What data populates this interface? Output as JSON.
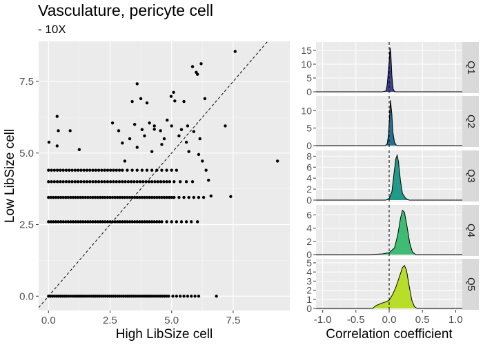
{
  "title": "Vasculature, pericyte cell",
  "subtitle": "- 10X",
  "chart_data": [
    {
      "type": "scatter",
      "xlabel": "High LibSize cell",
      "ylabel": "Low LibSize cell",
      "xlim": [
        -0.4,
        9.8
      ],
      "ylim": [
        -0.5,
        8.9
      ],
      "x_ticks": [
        "0.0",
        "2.5",
        "5.0",
        "7.5"
      ],
      "x_tick_values": [
        0,
        2.5,
        5.0,
        7.5
      ],
      "y_ticks": [
        "0.0",
        "2.5",
        "5.0",
        "7.5"
      ],
      "y_tick_values": [
        0,
        2.5,
        5.0,
        7.5
      ],
      "reference_line": "y = x (dashed)",
      "grid": true,
      "points": [
        [
          0.02,
          5.38
        ],
        [
          0.35,
          6.28
        ],
        [
          0.35,
          5.25
        ],
        [
          0.4,
          5.78
        ],
        [
          0.88,
          5.78
        ],
        [
          1.25,
          5.12
        ],
        [
          2.6,
          6.05
        ],
        [
          3.4,
          6.8
        ],
        [
          3.6,
          7.42
        ],
        [
          3.75,
          6.9
        ],
        [
          3.8,
          5.82
        ],
        [
          4.0,
          6.75
        ],
        [
          4.3,
          5.83
        ],
        [
          4.3,
          5.95
        ],
        [
          4.55,
          5.78
        ],
        [
          4.82,
          6.15
        ],
        [
          4.98,
          6.98
        ],
        [
          5.08,
          7.12
        ],
        [
          5.13,
          6.82
        ],
        [
          5.5,
          6.8
        ],
        [
          5.85,
          8.02
        ],
        [
          6.0,
          7.82
        ],
        [
          6.05,
          7.75
        ],
        [
          6.2,
          8.12
        ],
        [
          6.35,
          6.9
        ],
        [
          7.58,
          8.55
        ],
        [
          7.18,
          5.95
        ],
        [
          7.4,
          3.48
        ],
        [
          9.3,
          4.72
        ],
        [
          6.05,
          2.6
        ],
        [
          5.6,
          5.38
        ],
        [
          5.9,
          5.75
        ],
        [
          5.3,
          5.6
        ],
        [
          4.7,
          5.5
        ],
        [
          5.0,
          5.95
        ],
        [
          5.4,
          5.82
        ],
        [
          3.9,
          5.6
        ],
        [
          3.3,
          5.5
        ],
        [
          3.0,
          5.35
        ],
        [
          3.6,
          5.2
        ],
        [
          4.2,
          5.05
        ],
        [
          4.6,
          5.3
        ],
        [
          5.7,
          5.05
        ],
        [
          6.1,
          4.95
        ],
        [
          6.25,
          4.72
        ],
        [
          6.4,
          4.4
        ],
        [
          6.5,
          4.05
        ],
        [
          6.6,
          3.5
        ],
        [
          6.15,
          5.5
        ],
        [
          5.65,
          5.95
        ],
        [
          4.1,
          6.05
        ],
        [
          3.5,
          6.0
        ],
        [
          2.85,
          5.78
        ],
        [
          3.1,
          4.72
        ],
        [
          6.82,
          0.0
        ]
      ],
      "level_rows": [
        {
          "y": 4.4,
          "x_from": 0.0,
          "x_to": 3.05,
          "step": 0.12
        },
        {
          "y": 4.4,
          "x_from": 3.2,
          "x_to": 5.2,
          "step": 0.2
        },
        {
          "y": 4.0,
          "x_from": 0.0,
          "x_to": 4.95,
          "step": 0.12
        },
        {
          "y": 4.0,
          "x_from": 5.1,
          "x_to": 6.0,
          "step": 0.25
        },
        {
          "y": 3.45,
          "x_from": 0.0,
          "x_to": 5.0,
          "step": 0.1
        },
        {
          "y": 3.45,
          "x_from": 5.1,
          "x_to": 6.3,
          "step": 0.2
        },
        {
          "y": 2.6,
          "x_from": 0.0,
          "x_to": 4.65,
          "step": 0.1
        },
        {
          "y": 2.6,
          "x_from": 4.8,
          "x_to": 5.9,
          "step": 0.2
        },
        {
          "y": 0.0,
          "x_from": 0.0,
          "x_to": 4.95,
          "step": 0.08
        },
        {
          "y": 0.0,
          "x_from": 5.05,
          "x_to": 6.2,
          "step": 0.15
        }
      ]
    },
    {
      "type": "area",
      "xlabel": "Correlation coefficient",
      "xlim": [
        -1.1,
        1.1
      ],
      "x_ticks": [
        "-1.0",
        "-0.5",
        "0.0",
        "0.5",
        "1.0"
      ],
      "x_tick_values": [
        -1.0,
        -0.5,
        0.0,
        0.5,
        1.0
      ],
      "reference_line": "x = 0 (dashed)",
      "facets": [
        {
          "label": "Q1",
          "color": "#3f3f8c",
          "y_ticks": [
            "0",
            "5",
            "10",
            "15"
          ],
          "y_tick_values": [
            0,
            5,
            10,
            15
          ],
          "ymax": 17.5,
          "density": [
            [
              -0.1,
              0
            ],
            [
              -0.05,
              0.3
            ],
            [
              -0.03,
              2.5
            ],
            [
              -0.01,
              8
            ],
            [
              0.005,
              12.5
            ],
            [
              0.015,
              16
            ],
            [
              0.025,
              14
            ],
            [
              0.04,
              6
            ],
            [
              0.06,
              1
            ],
            [
              0.08,
              0.2
            ],
            [
              0.1,
              0
            ]
          ]
        },
        {
          "label": "Q2",
          "color": "#2a6e8e",
          "y_ticks": [
            "0",
            "5",
            "10"
          ],
          "y_tick_values": [
            0,
            5,
            10
          ],
          "ymax": 13.8,
          "density": [
            [
              -0.06,
              0
            ],
            [
              -0.03,
              0.5
            ],
            [
              -0.01,
              3
            ],
            [
              0.005,
              8
            ],
            [
              0.02,
              13
            ],
            [
              0.04,
              9
            ],
            [
              0.055,
              4
            ],
            [
              0.08,
              1
            ],
            [
              0.1,
              0.3
            ],
            [
              0.12,
              0
            ]
          ]
        },
        {
          "label": "Q3",
          "color": "#23998a",
          "y_ticks": [
            "0",
            "2",
            "4",
            "6",
            "8"
          ],
          "y_tick_values": [
            0,
            2,
            4,
            6,
            8
          ],
          "ymax": 8.8,
          "density": [
            [
              -0.05,
              0
            ],
            [
              0.0,
              0.3
            ],
            [
              0.04,
              1.5
            ],
            [
              0.07,
              4.5
            ],
            [
              0.1,
              7.5
            ],
            [
              0.12,
              8.2
            ],
            [
              0.14,
              7
            ],
            [
              0.17,
              3.5
            ],
            [
              0.2,
              1.2
            ],
            [
              0.25,
              0.3
            ],
            [
              0.3,
              0
            ]
          ]
        },
        {
          "label": "Q4",
          "color": "#3fbc73",
          "y_ticks": [
            "0",
            "2",
            "4",
            "6"
          ],
          "y_tick_values": [
            0,
            2,
            4,
            6
          ],
          "ymax": 7.3,
          "density": [
            [
              -0.3,
              0
            ],
            [
              -0.1,
              0.1
            ],
            [
              0.0,
              0.3
            ],
            [
              0.08,
              1
            ],
            [
              0.13,
              3
            ],
            [
              0.17,
              5.5
            ],
            [
              0.2,
              6.7
            ],
            [
              0.23,
              6.4
            ],
            [
              0.27,
              4.2
            ],
            [
              0.31,
              1.7
            ],
            [
              0.35,
              0.4
            ],
            [
              0.4,
              0
            ]
          ]
        },
        {
          "label": "Q5",
          "color": "#b8de29",
          "y_ticks": [
            "0",
            "1",
            "2",
            "3",
            "4",
            "5"
          ],
          "y_tick_values": [
            0,
            1,
            2,
            3,
            4,
            5
          ],
          "ymax": 5.3,
          "density": [
            [
              -0.25,
              0
            ],
            [
              -0.2,
              0.3
            ],
            [
              -0.12,
              0.55
            ],
            [
              -0.06,
              0.7
            ],
            [
              0.0,
              0.9
            ],
            [
              0.05,
              1.5
            ],
            [
              0.1,
              2.3
            ],
            [
              0.15,
              3.4
            ],
            [
              0.2,
              4.5
            ],
            [
              0.23,
              4.7
            ],
            [
              0.26,
              4.2
            ],
            [
              0.3,
              2.5
            ],
            [
              0.34,
              0.9
            ],
            [
              0.38,
              0.2
            ],
            [
              0.42,
              0
            ]
          ]
        }
      ]
    }
  ]
}
